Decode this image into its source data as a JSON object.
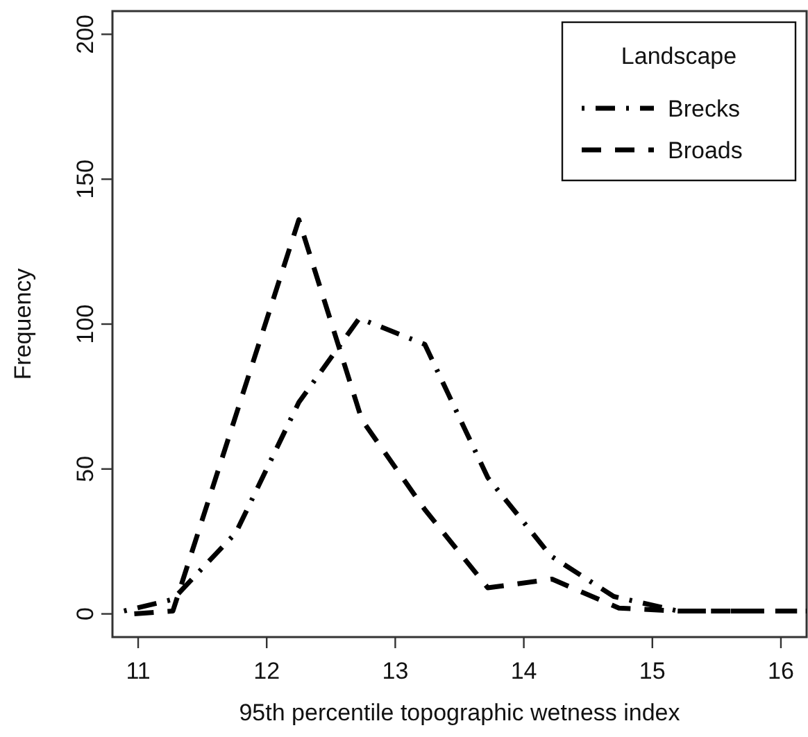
{
  "chart_data": {
    "type": "line",
    "xlabel": "95th percentile topographic wetness index",
    "ylabel": "Frequency",
    "legend_title": "Landscape",
    "legend": "top right",
    "grid": false,
    "xlim": [
      10.8,
      16.2
    ],
    "xticks": [
      11,
      12,
      13,
      14,
      15,
      16
    ],
    "ylim": [
      -8,
      208
    ],
    "yticks": [
      0,
      50,
      100,
      150,
      200
    ],
    "series": [
      {
        "name": "Brecks",
        "color": "#000000",
        "line_style": "dashdot",
        "x": [
          10.89,
          11.27,
          11.76,
          12.25,
          12.72,
          13.23,
          13.72,
          14.21,
          14.7,
          15.2,
          15.7,
          16.2
        ],
        "values": [
          1,
          5,
          28,
          73,
          102,
          93,
          47,
          20,
          6,
          1,
          1,
          1
        ]
      },
      {
        "name": "Broads",
        "color": "#000000",
        "line_style": "dashed",
        "x": [
          10.97,
          11.27,
          12.25,
          12.74,
          13.23,
          13.72,
          14.22,
          14.74,
          15.2,
          15.7,
          16.2
        ],
        "values": [
          0,
          1,
          136,
          67,
          36,
          9,
          12,
          2,
          1,
          1,
          1
        ]
      }
    ]
  }
}
